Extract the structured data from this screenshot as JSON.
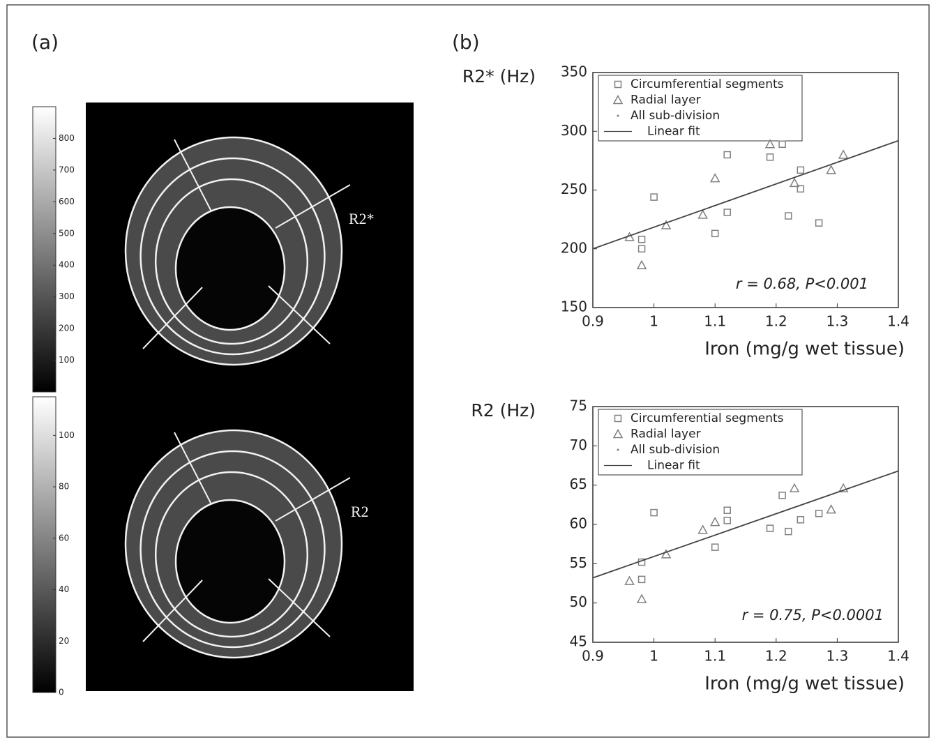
{
  "panel_a": {
    "label": "(a)",
    "image_labels": [
      "R2*",
      "R2"
    ],
    "colorbars": [
      {
        "lim": [
          0,
          900
        ],
        "ticks": [
          100,
          200,
          300,
          400,
          500,
          600,
          700,
          800
        ]
      },
      {
        "lim": [
          0,
          115
        ],
        "ticks": [
          0,
          20,
          40,
          60,
          80,
          100
        ]
      }
    ]
  },
  "panel_b": {
    "label": "(b)"
  },
  "chart_data": [
    {
      "type": "scatter",
      "y_label": "R2* (Hz)",
      "x_label": "Iron (mg/g wet tissue)",
      "xlim": [
        0.9,
        1.4
      ],
      "xticks": [
        0.9,
        1,
        1.1,
        1.2,
        1.3,
        1.4
      ],
      "ylim": [
        150,
        350
      ],
      "yticks": [
        150,
        200,
        250,
        300,
        350
      ],
      "annotation": "r = 0.68, P<0.001",
      "series": [
        {
          "name": "Circumferential segments",
          "marker": "square",
          "color": "#808080",
          "x": [
            0.98,
            0.98,
            1.0,
            1.1,
            1.12,
            1.12,
            1.19,
            1.21,
            1.22,
            1.24,
            1.24,
            1.27
          ],
          "values": [
            208,
            200,
            244,
            213,
            280,
            231,
            278,
            289,
            228,
            267,
            251,
            222
          ]
        },
        {
          "name": "Radial layer",
          "marker": "triangle",
          "color": "#808080",
          "x": [
            0.96,
            0.98,
            1.02,
            1.08,
            1.1,
            1.19,
            1.23,
            1.29,
            1.31
          ],
          "values": [
            210,
            186,
            220,
            229,
            260,
            289,
            256,
            267,
            280
          ]
        },
        {
          "name": "All sub-division",
          "marker": "dot",
          "color": "#808080",
          "x": [],
          "values": []
        },
        {
          "name": "Linear fit",
          "marker": "line",
          "color": "#444444",
          "x": [
            0.9,
            1.4
          ],
          "values": [
            200,
            292
          ]
        }
      ]
    },
    {
      "type": "scatter",
      "y_label": "R2 (Hz)",
      "x_label": "Iron (mg/g wet tissue)",
      "xlim": [
        0.9,
        1.4
      ],
      "xticks": [
        0.9,
        1,
        1.1,
        1.2,
        1.3,
        1.4
      ],
      "ylim": [
        45,
        75
      ],
      "yticks": [
        45,
        50,
        55,
        60,
        65,
        70,
        75
      ],
      "annotation": "r = 0.75, P<0.0001",
      "series": [
        {
          "name": "Circumferential segments",
          "marker": "square",
          "color": "#808080",
          "x": [
            0.98,
            0.98,
            1.0,
            1.1,
            1.12,
            1.12,
            1.19,
            1.21,
            1.22,
            1.24,
            1.27
          ],
          "values": [
            53.0,
            55.2,
            61.5,
            57.1,
            61.8,
            60.5,
            59.5,
            63.7,
            59.1,
            60.6,
            61.4
          ]
        },
        {
          "name": "Radial layer",
          "marker": "triangle",
          "color": "#808080",
          "x": [
            0.96,
            0.98,
            1.02,
            1.08,
            1.1,
            1.23,
            1.29,
            1.31
          ],
          "values": [
            52.8,
            50.5,
            56.2,
            59.3,
            60.3,
            64.6,
            61.9,
            64.6
          ]
        },
        {
          "name": "All sub-division",
          "marker": "dot",
          "color": "#808080",
          "x": [],
          "values": []
        },
        {
          "name": "Linear fit",
          "marker": "line",
          "color": "#444444",
          "x": [
            0.9,
            1.4
          ],
          "values": [
            53.2,
            66.8
          ]
        }
      ]
    }
  ]
}
